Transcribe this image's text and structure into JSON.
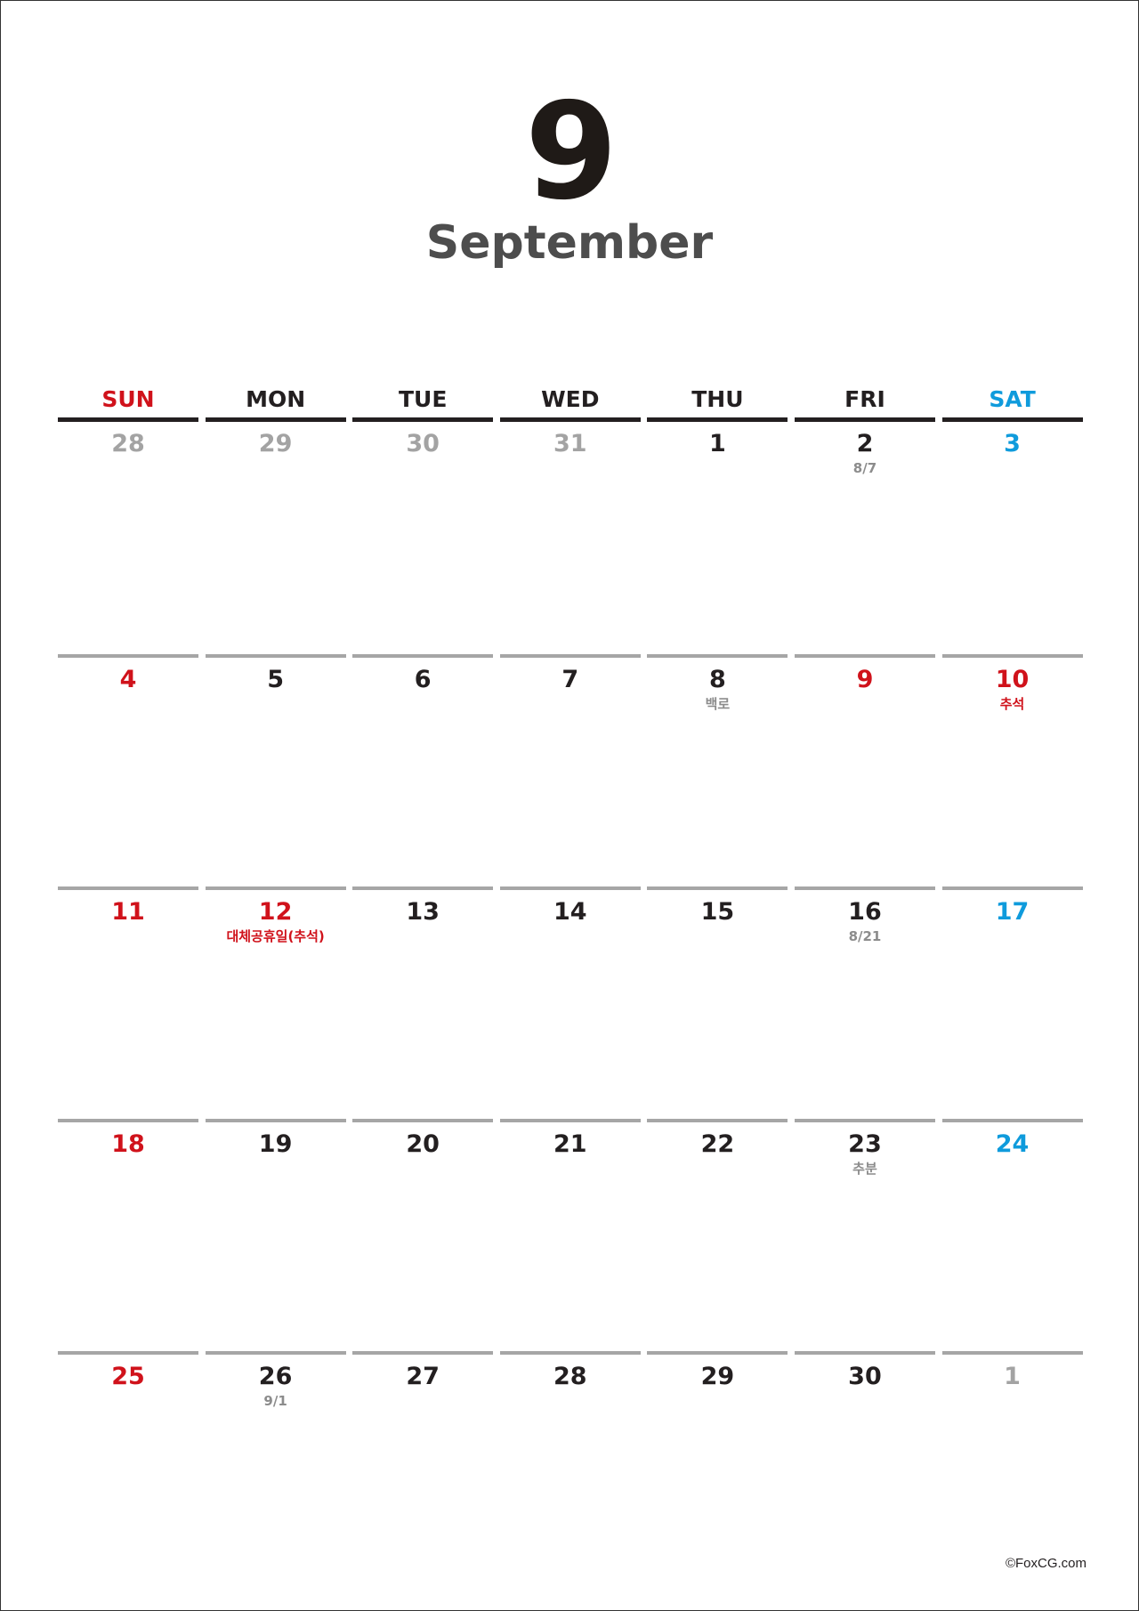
{
  "header": {
    "month_number": "9",
    "month_name": "September"
  },
  "weekdays": [
    "SUN",
    "MON",
    "TUE",
    "WED",
    "THU",
    "FRI",
    "SAT"
  ],
  "colors": {
    "sunday_holiday": "#d0121b",
    "saturday": "#0f9bdc",
    "other_month": "#a3a3a3",
    "note_gray": "#8c8c8c",
    "text": "#231f20"
  },
  "weeks": [
    [
      {
        "day": "28",
        "style": "gray"
      },
      {
        "day": "29",
        "style": "gray"
      },
      {
        "day": "30",
        "style": "gray"
      },
      {
        "day": "31",
        "style": "gray"
      },
      {
        "day": "1",
        "style": "normal"
      },
      {
        "day": "2",
        "style": "normal",
        "note": "8/7",
        "note_style": "gray"
      },
      {
        "day": "3",
        "style": "blue"
      }
    ],
    [
      {
        "day": "4",
        "style": "red"
      },
      {
        "day": "5",
        "style": "normal"
      },
      {
        "day": "6",
        "style": "normal"
      },
      {
        "day": "7",
        "style": "normal"
      },
      {
        "day": "8",
        "style": "normal",
        "note": "백로",
        "note_style": "gray"
      },
      {
        "day": "9",
        "style": "red"
      },
      {
        "day": "10",
        "style": "red",
        "note": "추석",
        "note_style": "red"
      }
    ],
    [
      {
        "day": "11",
        "style": "red"
      },
      {
        "day": "12",
        "style": "red",
        "note": "대체공휴일(추석)",
        "note_style": "red"
      },
      {
        "day": "13",
        "style": "normal"
      },
      {
        "day": "14",
        "style": "normal"
      },
      {
        "day": "15",
        "style": "normal"
      },
      {
        "day": "16",
        "style": "normal",
        "note": "8/21",
        "note_style": "gray"
      },
      {
        "day": "17",
        "style": "blue"
      }
    ],
    [
      {
        "day": "18",
        "style": "red"
      },
      {
        "day": "19",
        "style": "normal"
      },
      {
        "day": "20",
        "style": "normal"
      },
      {
        "day": "21",
        "style": "normal"
      },
      {
        "day": "22",
        "style": "normal"
      },
      {
        "day": "23",
        "style": "normal",
        "note": "추분",
        "note_style": "gray"
      },
      {
        "day": "24",
        "style": "blue"
      }
    ],
    [
      {
        "day": "25",
        "style": "red"
      },
      {
        "day": "26",
        "style": "normal",
        "note": "9/1",
        "note_style": "gray"
      },
      {
        "day": "27",
        "style": "normal"
      },
      {
        "day": "28",
        "style": "normal"
      },
      {
        "day": "29",
        "style": "normal"
      },
      {
        "day": "30",
        "style": "normal"
      },
      {
        "day": "1",
        "style": "gray"
      }
    ]
  ],
  "footer": {
    "copyright": "©FoxCG.com"
  }
}
